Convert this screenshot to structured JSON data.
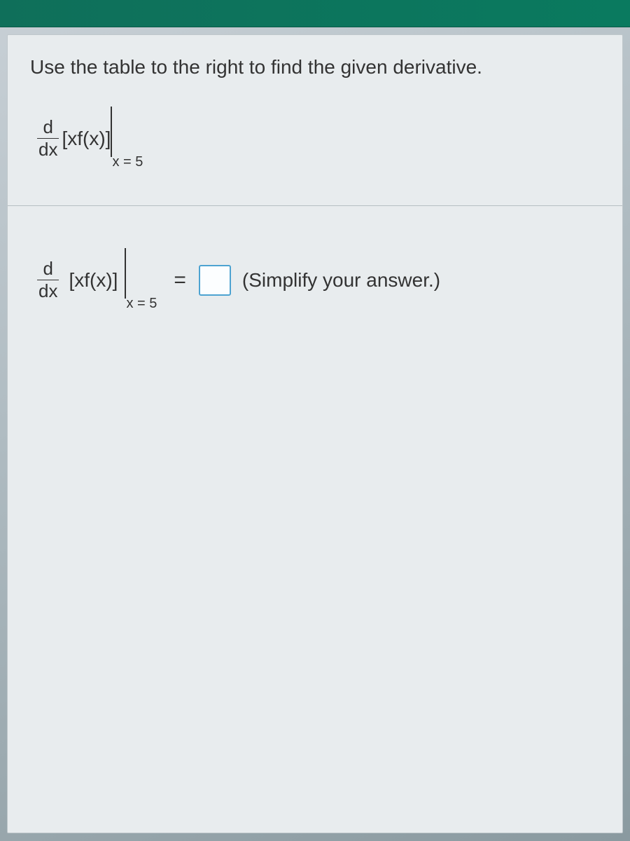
{
  "colors": {
    "header_band": "#0f6f5a",
    "panel_bg": "#e8ecee",
    "panel_border": "#bfc7cb",
    "body_bg_top": "#c8d0d6",
    "body_bg_bottom": "#8a9aa0",
    "text": "#333333",
    "divider": "#b6bfc3",
    "input_border": "#4da3d1",
    "input_bg": "#fcfeff"
  },
  "typography": {
    "instruction_fontsize": 28,
    "math_fontsize": 28,
    "subscript_fontsize": 20,
    "font_family": "Arial"
  },
  "instruction": "Use the table to the right to find the given derivative.",
  "expression": {
    "frac_num": "d",
    "frac_den": "dx",
    "inner": "[xf(x)]",
    "eval_at": "x = 5"
  },
  "answer_line": {
    "frac_num": "d",
    "frac_den": "dx",
    "inner": "[xf(x)]",
    "eval_at": "x = 5",
    "equals": "=",
    "input_value": "",
    "hint": "(Simplify your answer.)"
  }
}
